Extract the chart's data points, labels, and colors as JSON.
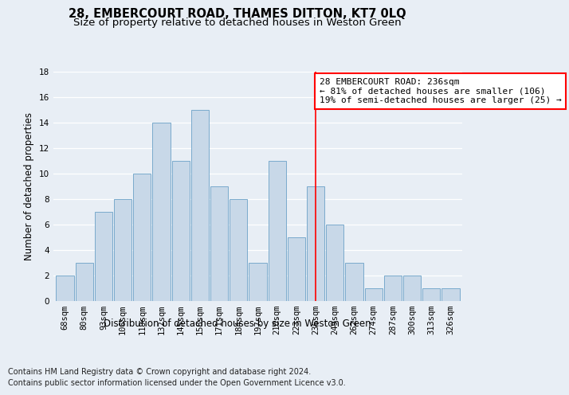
{
  "title": "28, EMBERCOURT ROAD, THAMES DITTON, KT7 0LQ",
  "subtitle": "Size of property relative to detached houses in Weston Green",
  "xlabel_bottom": "Distribution of detached houses by size in Weston Green",
  "ylabel": "Number of detached properties",
  "footer_line1": "Contains HM Land Registry data © Crown copyright and database right 2024.",
  "footer_line2": "Contains public sector information licensed under the Open Government Licence v3.0.",
  "categories": [
    "68sqm",
    "80sqm",
    "93sqm",
    "106sqm",
    "119sqm",
    "132sqm",
    "145sqm",
    "158sqm",
    "171sqm",
    "184sqm",
    "197sqm",
    "210sqm",
    "223sqm",
    "236sqm",
    "249sqm",
    "262sqm",
    "274sqm",
    "287sqm",
    "300sqm",
    "313sqm",
    "326sqm"
  ],
  "values": [
    2,
    3,
    7,
    8,
    10,
    14,
    11,
    15,
    9,
    8,
    3,
    11,
    5,
    9,
    6,
    3,
    1,
    2,
    2,
    1,
    1
  ],
  "bar_color": "#c8d8e8",
  "bar_edge_color": "#7aaacc",
  "highlight_index": 13,
  "annotation_text": "28 EMBERCOURT ROAD: 236sqm\n← 81% of detached houses are smaller (106)\n19% of semi-detached houses are larger (25) →",
  "ylim": [
    0,
    18
  ],
  "yticks": [
    0,
    2,
    4,
    6,
    8,
    10,
    12,
    14,
    16,
    18
  ],
  "background_color": "#e8eef5",
  "plot_bg_color": "#e8eef5",
  "title_fontsize": 10.5,
  "subtitle_fontsize": 9.5,
  "axis_label_fontsize": 8.5,
  "tick_fontsize": 7.5,
  "annotation_fontsize": 8,
  "footer_fontsize": 7
}
